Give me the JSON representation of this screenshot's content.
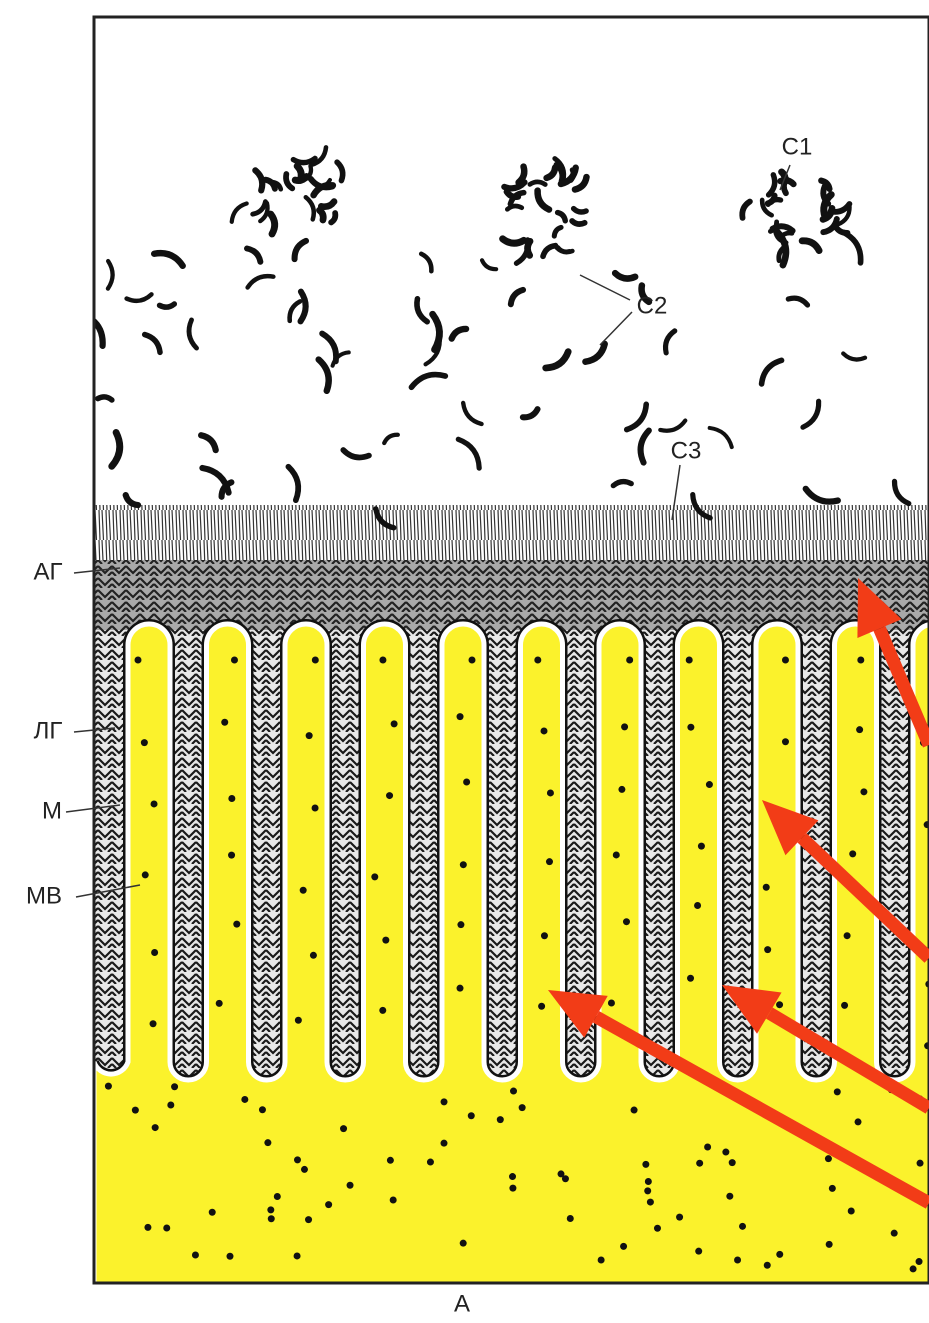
{
  "labels": [
    "С1",
    "С2",
    "С3",
    "АГ",
    "ЛГ",
    "М",
    "МВ"
  ],
  "caption": "А"
}
